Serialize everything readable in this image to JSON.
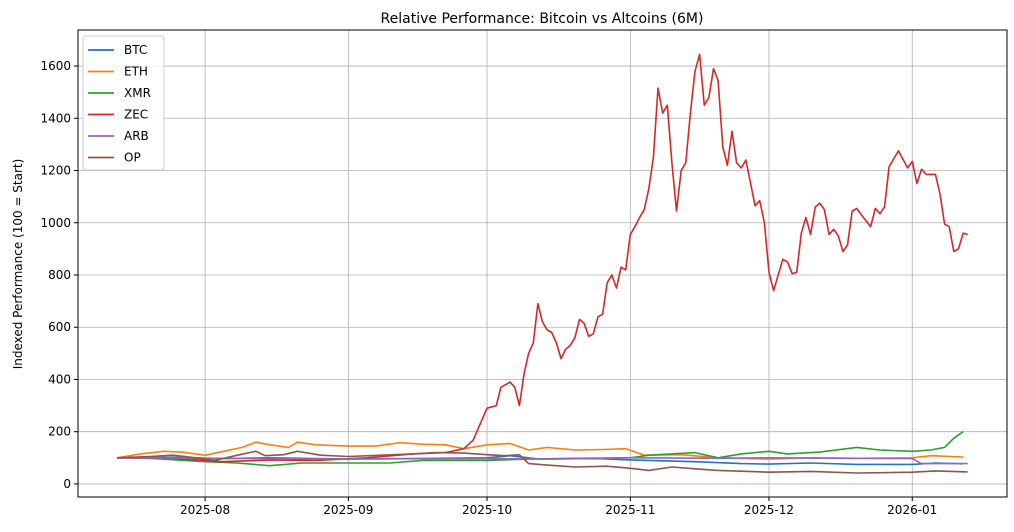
{
  "chart_data": {
    "type": "line",
    "title": "Relative Performance: Bitcoin vs Altcoins (6M)",
    "xlabel": "",
    "ylabel": "Indexed Performance (100 = Start)",
    "xlim": [
      "2025-07-04T12:00",
      "2026-01-21T12:00"
    ],
    "ylim": [
      -50,
      1738
    ],
    "grid": true,
    "legend_placement": "top-left",
    "xticks": [
      {
        "date": "2025-08-01",
        "label": "2025-08"
      },
      {
        "date": "2025-09-01",
        "label": "2025-09"
      },
      {
        "date": "2025-10-01",
        "label": "2025-10"
      },
      {
        "date": "2025-11-01",
        "label": "2025-11"
      },
      {
        "date": "2025-12-01",
        "label": "2025-12"
      },
      {
        "date": "2026-01-01",
        "label": "2026-01"
      }
    ],
    "yticks": [
      0,
      200,
      400,
      600,
      800,
      1000,
      1200,
      1400,
      1600
    ],
    "series": [
      {
        "name": "BTC",
        "color": "#1f77b4",
        "points": [
          [
            "2025-07-13",
            100
          ],
          [
            "2025-07-25",
            102
          ],
          [
            "2025-08-05",
            97
          ],
          [
            "2025-08-15",
            100
          ],
          [
            "2025-09-01",
            95
          ],
          [
            "2025-09-15",
            97
          ],
          [
            "2025-10-01",
            100
          ],
          [
            "2025-10-06",
            108
          ],
          [
            "2025-10-12",
            96
          ],
          [
            "2025-10-25",
            97
          ],
          [
            "2025-11-01",
            92
          ],
          [
            "2025-11-15",
            85
          ],
          [
            "2025-11-25",
            78
          ],
          [
            "2025-12-01",
            76
          ],
          [
            "2025-12-10",
            80
          ],
          [
            "2025-12-20",
            75
          ],
          [
            "2026-01-01",
            75
          ],
          [
            "2026-01-06",
            80
          ],
          [
            "2026-01-12",
            77
          ]
        ]
      },
      {
        "name": "ETH",
        "color": "#ff7f0e",
        "points": [
          [
            "2025-07-13",
            100
          ],
          [
            "2025-07-18",
            115
          ],
          [
            "2025-07-23",
            125
          ],
          [
            "2025-07-27",
            122
          ],
          [
            "2025-08-01",
            110
          ],
          [
            "2025-08-05",
            125
          ],
          [
            "2025-08-09",
            140
          ],
          [
            "2025-08-12",
            160
          ],
          [
            "2025-08-15",
            150
          ],
          [
            "2025-08-19",
            140
          ],
          [
            "2025-08-21",
            160
          ],
          [
            "2025-08-25",
            150
          ],
          [
            "2025-09-01",
            145
          ],
          [
            "2025-09-07",
            145
          ],
          [
            "2025-09-12",
            158
          ],
          [
            "2025-09-17",
            152
          ],
          [
            "2025-09-22",
            150
          ],
          [
            "2025-09-26",
            135
          ],
          [
            "2025-10-01",
            150
          ],
          [
            "2025-10-06",
            155
          ],
          [
            "2025-10-10",
            130
          ],
          [
            "2025-10-14",
            140
          ],
          [
            "2025-10-20",
            130
          ],
          [
            "2025-10-26",
            132
          ],
          [
            "2025-10-31",
            135
          ],
          [
            "2025-11-04",
            110
          ],
          [
            "2025-11-12",
            112
          ],
          [
            "2025-11-20",
            100
          ],
          [
            "2025-12-01",
            95
          ],
          [
            "2025-12-10",
            100
          ],
          [
            "2025-12-20",
            98
          ],
          [
            "2026-01-01",
            100
          ],
          [
            "2026-01-05",
            108
          ],
          [
            "2026-01-12",
            103
          ]
        ]
      },
      {
        "name": "XMR",
        "color": "#2ca02c",
        "points": [
          [
            "2025-07-13",
            100
          ],
          [
            "2025-07-20",
            98
          ],
          [
            "2025-08-01",
            85
          ],
          [
            "2025-08-08",
            80
          ],
          [
            "2025-08-15",
            70
          ],
          [
            "2025-08-22",
            80
          ],
          [
            "2025-09-01",
            80
          ],
          [
            "2025-09-10",
            80
          ],
          [
            "2025-09-17",
            90
          ],
          [
            "2025-10-01",
            90
          ],
          [
            "2025-10-10",
            95
          ],
          [
            "2025-10-20",
            98
          ],
          [
            "2025-11-01",
            100
          ],
          [
            "2025-11-05",
            110
          ],
          [
            "2025-11-10",
            115
          ],
          [
            "2025-11-15",
            120
          ],
          [
            "2025-11-20",
            100
          ],
          [
            "2025-11-25",
            115
          ],
          [
            "2025-12-01",
            125
          ],
          [
            "2025-12-05",
            115
          ],
          [
            "2025-12-12",
            122
          ],
          [
            "2025-12-20",
            140
          ],
          [
            "2025-12-25",
            130
          ],
          [
            "2026-01-01",
            125
          ],
          [
            "2026-01-05",
            130
          ],
          [
            "2026-01-08",
            140
          ],
          [
            "2026-01-10",
            175
          ],
          [
            "2026-01-12",
            200
          ]
        ]
      },
      {
        "name": "ZEC",
        "color": "#d62728",
        "points": [
          [
            "2025-07-13",
            100
          ],
          [
            "2025-07-25",
            98
          ],
          [
            "2025-08-05",
            85
          ],
          [
            "2025-08-15",
            92
          ],
          [
            "2025-08-25",
            90
          ],
          [
            "2025-09-05",
            100
          ],
          [
            "2025-09-15",
            115
          ],
          [
            "2025-09-22",
            120
          ],
          [
            "2025-09-26",
            135
          ],
          [
            "2025-09-28",
            168
          ],
          [
            "2025-10-01",
            290
          ],
          [
            "2025-10-03",
            300
          ],
          [
            "2025-10-04",
            370
          ],
          [
            "2025-10-06",
            390
          ],
          [
            "2025-10-07",
            370
          ],
          [
            "2025-10-08",
            300
          ],
          [
            "2025-10-09",
            420
          ],
          [
            "2025-10-10",
            500
          ],
          [
            "2025-10-11",
            540
          ],
          [
            "2025-10-12",
            690
          ],
          [
            "2025-10-13",
            620
          ],
          [
            "2025-10-14",
            590
          ],
          [
            "2025-10-15",
            580
          ],
          [
            "2025-10-16",
            540
          ],
          [
            "2025-10-17",
            480
          ],
          [
            "2025-10-18",
            515
          ],
          [
            "2025-10-19",
            530
          ],
          [
            "2025-10-20",
            560
          ],
          [
            "2025-10-21",
            630
          ],
          [
            "2025-10-22",
            615
          ],
          [
            "2025-10-23",
            565
          ],
          [
            "2025-10-24",
            575
          ],
          [
            "2025-10-25",
            640
          ],
          [
            "2025-10-26",
            650
          ],
          [
            "2025-10-27",
            770
          ],
          [
            "2025-10-28",
            800
          ],
          [
            "2025-10-29",
            750
          ],
          [
            "2025-10-30",
            830
          ],
          [
            "2025-10-31",
            820
          ],
          [
            "2025-11-01",
            955
          ],
          [
            "2025-11-02",
            985
          ],
          [
            "2025-11-03",
            1020
          ],
          [
            "2025-11-04",
            1050
          ],
          [
            "2025-11-05",
            1130
          ],
          [
            "2025-11-06",
            1250
          ],
          [
            "2025-11-07",
            1515
          ],
          [
            "2025-11-08",
            1420
          ],
          [
            "2025-11-09",
            1450
          ],
          [
            "2025-11-10",
            1230
          ],
          [
            "2025-11-11",
            1045
          ],
          [
            "2025-11-12",
            1200
          ],
          [
            "2025-11-13",
            1230
          ],
          [
            "2025-11-14",
            1420
          ],
          [
            "2025-11-15",
            1580
          ],
          [
            "2025-11-16",
            1645
          ],
          [
            "2025-11-17",
            1450
          ],
          [
            "2025-11-18",
            1480
          ],
          [
            "2025-11-19",
            1590
          ],
          [
            "2025-11-20",
            1545
          ],
          [
            "2025-11-21",
            1290
          ],
          [
            "2025-11-22",
            1220
          ],
          [
            "2025-11-23",
            1350
          ],
          [
            "2025-11-24",
            1230
          ],
          [
            "2025-11-25",
            1210
          ],
          [
            "2025-11-26",
            1240
          ],
          [
            "2025-11-28",
            1065
          ],
          [
            "2025-11-29",
            1085
          ],
          [
            "2025-11-30",
            1000
          ],
          [
            "2025-12-01",
            810
          ],
          [
            "2025-12-02",
            740
          ],
          [
            "2025-12-04",
            860
          ],
          [
            "2025-12-05",
            850
          ],
          [
            "2025-12-06",
            805
          ],
          [
            "2025-12-07",
            810
          ],
          [
            "2025-12-08",
            960
          ],
          [
            "2025-12-09",
            1020
          ],
          [
            "2025-12-10",
            955
          ],
          [
            "2025-12-11",
            1060
          ],
          [
            "2025-12-12",
            1075
          ],
          [
            "2025-12-13",
            1050
          ],
          [
            "2025-12-14",
            955
          ],
          [
            "2025-12-15",
            975
          ],
          [
            "2025-12-16",
            950
          ],
          [
            "2025-12-17",
            890
          ],
          [
            "2025-12-18",
            915
          ],
          [
            "2025-12-19",
            1045
          ],
          [
            "2025-12-20",
            1055
          ],
          [
            "2025-12-21",
            1030
          ],
          [
            "2025-12-23",
            985
          ],
          [
            "2025-12-24",
            1055
          ],
          [
            "2025-12-25",
            1035
          ],
          [
            "2025-12-26",
            1060
          ],
          [
            "2025-12-27",
            1215
          ],
          [
            "2025-12-29",
            1275
          ],
          [
            "2025-12-31",
            1210
          ],
          [
            "2026-01-01",
            1235
          ],
          [
            "2026-01-02",
            1150
          ],
          [
            "2026-01-03",
            1205
          ],
          [
            "2026-01-04",
            1185
          ],
          [
            "2026-01-06",
            1185
          ],
          [
            "2026-01-07",
            1110
          ],
          [
            "2026-01-08",
            995
          ],
          [
            "2026-01-09",
            985
          ],
          [
            "2026-01-10",
            890
          ],
          [
            "2026-01-11",
            900
          ],
          [
            "2026-01-12",
            960
          ],
          [
            "2026-01-13",
            955
          ]
        ]
      },
      {
        "name": "ARB",
        "color": "#9467bd",
        "points": [
          [
            "2025-07-13",
            100
          ],
          [
            "2025-08-01",
            98
          ],
          [
            "2025-09-01",
            96
          ],
          [
            "2025-10-01",
            97
          ],
          [
            "2025-10-15",
            95
          ],
          [
            "2025-11-01",
            100
          ],
          [
            "2025-11-20",
            98
          ],
          [
            "2025-12-01",
            100
          ],
          [
            "2025-12-20",
            98
          ],
          [
            "2026-01-01",
            97
          ],
          [
            "2026-01-03",
            78
          ],
          [
            "2026-01-13",
            78
          ]
        ]
      },
      {
        "name": "OP",
        "color": "#8c564b",
        "points": [
          [
            "2025-07-13",
            100
          ],
          [
            "2025-07-20",
            105
          ],
          [
            "2025-07-25",
            110
          ],
          [
            "2025-07-30",
            100
          ],
          [
            "2025-08-03",
            90
          ],
          [
            "2025-08-08",
            110
          ],
          [
            "2025-08-12",
            125
          ],
          [
            "2025-08-14",
            108
          ],
          [
            "2025-08-18",
            112
          ],
          [
            "2025-08-21",
            125
          ],
          [
            "2025-08-26",
            110
          ],
          [
            "2025-09-01",
            105
          ],
          [
            "2025-09-08",
            110
          ],
          [
            "2025-09-15",
            115
          ],
          [
            "2025-09-20",
            120
          ],
          [
            "2025-09-26",
            118
          ],
          [
            "2025-10-01",
            112
          ],
          [
            "2025-10-05",
            108
          ],
          [
            "2025-10-08",
            112
          ],
          [
            "2025-10-10",
            78
          ],
          [
            "2025-10-14",
            72
          ],
          [
            "2025-10-20",
            65
          ],
          [
            "2025-10-27",
            68
          ],
          [
            "2025-11-01",
            60
          ],
          [
            "2025-11-05",
            52
          ],
          [
            "2025-11-10",
            65
          ],
          [
            "2025-11-15",
            58
          ],
          [
            "2025-11-20",
            52
          ],
          [
            "2025-12-01",
            45
          ],
          [
            "2025-12-10",
            48
          ],
          [
            "2025-12-20",
            42
          ],
          [
            "2026-01-01",
            45
          ],
          [
            "2026-01-06",
            50
          ],
          [
            "2026-01-13",
            46
          ]
        ]
      }
    ]
  }
}
